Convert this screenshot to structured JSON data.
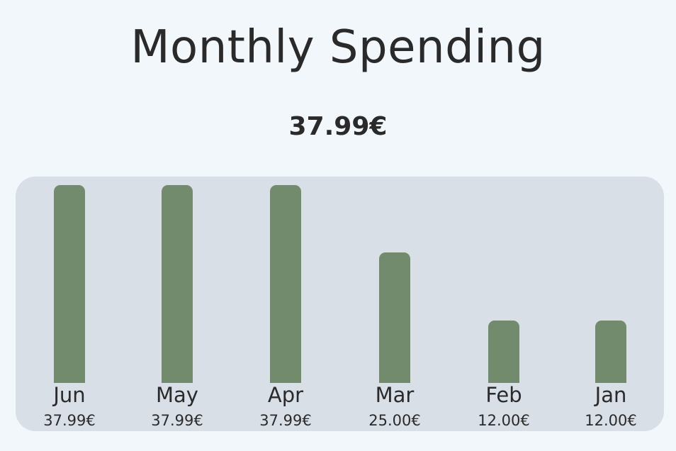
{
  "header": {
    "title": "Monthly Spending",
    "total": "37.99€"
  },
  "colors": {
    "background": "#f2f7fb",
    "panel": "#d9dfe7",
    "bar": "#728b6d",
    "text": "#2a2a2a"
  },
  "chart_data": {
    "type": "bar",
    "categories": [
      "Jun",
      "May",
      "Apr",
      "Mar",
      "Feb",
      "Jan"
    ],
    "values": [
      37.99,
      37.99,
      37.99,
      25.0,
      12.0,
      12.0
    ],
    "value_labels": [
      "37.99€",
      "37.99€",
      "37.99€",
      "25.00€",
      "12.00€",
      "12.00€"
    ],
    "title": "Monthly Spending",
    "xlabel": "",
    "ylabel": "",
    "ylim": [
      0,
      37.99
    ],
    "grid": false,
    "legend": "none"
  }
}
